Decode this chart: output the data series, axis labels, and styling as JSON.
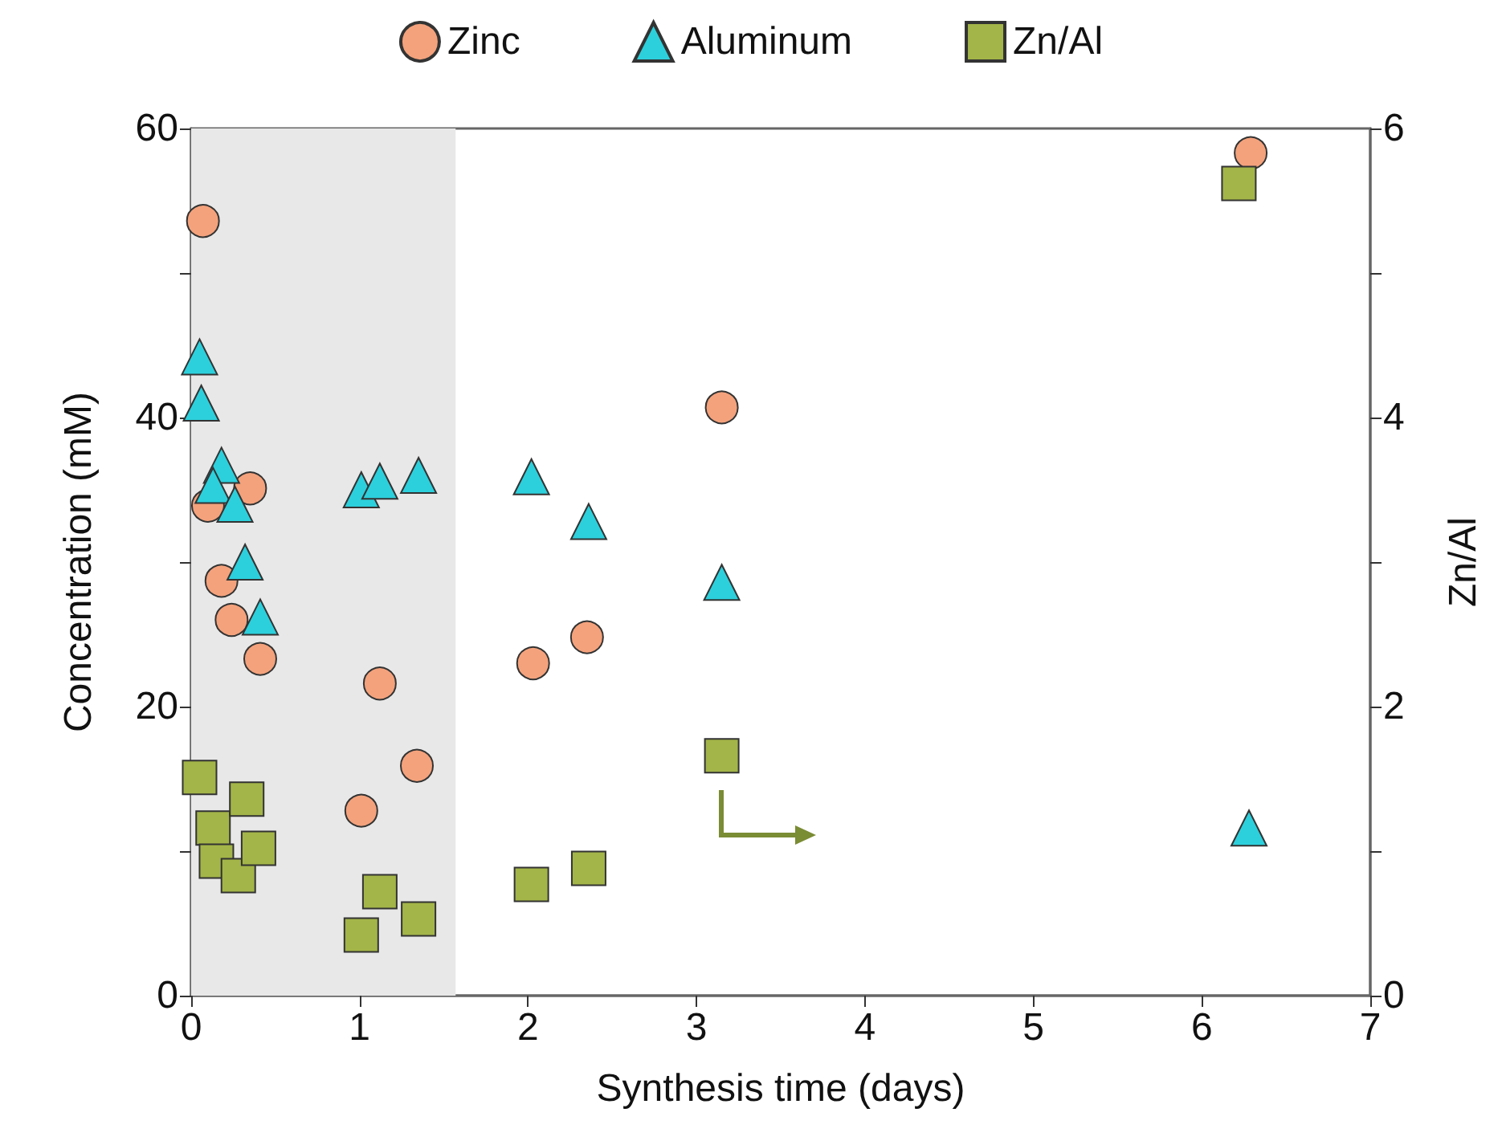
{
  "chart_data": {
    "type": "scatter",
    "xlabel": "Synthesis time (days)",
    "ylabel": "Concentration (mM)",
    "y2label": "Zn/Al",
    "xlim": [
      0,
      7
    ],
    "xticks": [
      0,
      1,
      2,
      3,
      4,
      5,
      6,
      7
    ],
    "ylim": [
      0,
      60
    ],
    "yticks": [
      0,
      {
        "value": 10,
        "label": null
      },
      20,
      {
        "value": 30,
        "label": null
      },
      40,
      {
        "value": 50,
        "label": null
      },
      60
    ],
    "y2lim": [
      0,
      6
    ],
    "y2ticks": [
      0,
      {
        "value": 1,
        "label": null
      },
      2,
      {
        "value": 3,
        "label": null
      },
      4,
      {
        "value": 5,
        "label": null
      },
      6
    ],
    "grid": false,
    "legend": "top",
    "bands": [
      {
        "axis": "x",
        "from": 0,
        "to": 1.57,
        "color": "#e8e8e8"
      }
    ],
    "series": [
      {
        "name": "Zinc",
        "color": "#f4a27c",
        "marker": "circle",
        "x": [
          0.07,
          0.1,
          0.35,
          0.18,
          0.24,
          0.41,
          1.12,
          1.01,
          1.34,
          2.03,
          2.35,
          3.15,
          6.29
        ],
        "values": [
          53.6,
          33.9,
          35.1,
          28.7,
          26.0,
          23.3,
          21.6,
          12.8,
          15.9,
          23.0,
          24.8,
          40.7,
          58.3
        ]
      },
      {
        "name": "Aluminum",
        "color": "#2cd0dc",
        "marker": "triangle",
        "x": [
          0.05,
          0.06,
          0.18,
          0.13,
          0.26,
          0.32,
          0.41,
          1.01,
          1.12,
          1.35,
          2.02,
          2.36,
          3.15,
          6.28
        ],
        "values": [
          44.2,
          41.0,
          36.7,
          35.3,
          34.0,
          30.0,
          26.2,
          35.0,
          35.6,
          36.0,
          35.9,
          32.8,
          28.6,
          11.6
        ]
      },
      {
        "name": "Zn/Al",
        "color": "#a3b548",
        "marker": "square",
        "axis": "y2",
        "x": [
          0.05,
          0.13,
          0.15,
          0.28,
          0.33,
          0.4,
          1.01,
          1.12,
          1.35,
          2.02,
          2.36,
          3.15,
          6.22
        ],
        "values": [
          1.51,
          1.16,
          0.93,
          0.83,
          1.36,
          1.02,
          0.42,
          0.72,
          0.53,
          0.77,
          0.88,
          1.66,
          5.62
        ]
      }
    ]
  }
}
